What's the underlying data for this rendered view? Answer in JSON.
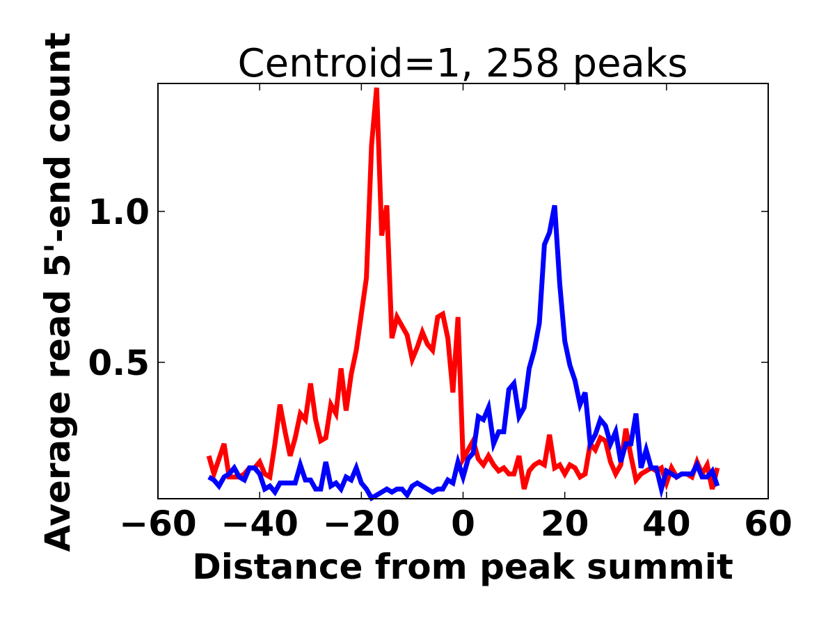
{
  "chart_data": {
    "type": "line",
    "title": "Centroid=1, 258 peaks",
    "xlabel": "Distance from peak summit",
    "ylabel": "Average read 5'-end count",
    "xlim": [
      -60,
      60
    ],
    "ylim": [
      0.048,
      1.424
    ],
    "xticks": [
      -60,
      -40,
      -20,
      0,
      20,
      40,
      60
    ],
    "xtick_labels": [
      "−60",
      "−40",
      "−20",
      "0",
      "20",
      "40",
      "60"
    ],
    "yticks": [
      0.5,
      1.0
    ],
    "ytick_labels": [
      "0.5",
      "1.0"
    ],
    "grid": false,
    "x_start": -50,
    "x_step": 1,
    "series": [
      {
        "name": "red",
        "color": "#ff0000",
        "values": [
          0.19,
          0.13,
          0.18,
          0.23,
          0.12,
          0.12,
          0.12,
          0.13,
          0.15,
          0.15,
          0.17,
          0.13,
          0.12,
          0.23,
          0.36,
          0.27,
          0.19,
          0.25,
          0.33,
          0.31,
          0.43,
          0.31,
          0.24,
          0.25,
          0.36,
          0.33,
          0.48,
          0.34,
          0.46,
          0.54,
          0.66,
          0.78,
          1.22,
          1.41,
          0.92,
          1.02,
          0.58,
          0.65,
          0.62,
          0.59,
          0.51,
          0.55,
          0.6,
          0.56,
          0.54,
          0.65,
          0.66,
          0.58,
          0.4,
          0.65,
          0.18,
          0.21,
          0.24,
          0.18,
          0.16,
          0.19,
          0.16,
          0.14,
          0.15,
          0.13,
          0.13,
          0.19,
          0.08,
          0.14,
          0.16,
          0.17,
          0.16,
          0.26,
          0.15,
          0.16,
          0.13,
          0.16,
          0.15,
          0.12,
          0.13,
          0.23,
          0.21,
          0.25,
          0.24,
          0.17,
          0.13,
          0.16,
          0.28,
          0.19,
          0.11,
          0.13,
          0.14,
          0.15,
          0.14,
          0.15,
          0.1,
          0.15,
          0.12,
          0.13,
          0.13,
          0.12,
          0.17,
          0.13,
          0.16,
          0.08,
          0.15
        ]
      },
      {
        "name": "blue",
        "color": "#0000ff",
        "values": [
          0.12,
          0.11,
          0.09,
          0.12,
          0.13,
          0.15,
          0.12,
          0.11,
          0.15,
          0.15,
          0.13,
          0.08,
          0.09,
          0.07,
          0.1,
          0.1,
          0.1,
          0.1,
          0.16,
          0.11,
          0.11,
          0.08,
          0.08,
          0.17,
          0.09,
          0.1,
          0.08,
          0.12,
          0.11,
          0.15,
          0.1,
          0.08,
          0.05,
          0.06,
          0.07,
          0.08,
          0.07,
          0.08,
          0.08,
          0.06,
          0.09,
          0.1,
          0.09,
          0.08,
          0.07,
          0.08,
          0.08,
          0.11,
          0.1,
          0.17,
          0.12,
          0.18,
          0.2,
          0.32,
          0.31,
          0.35,
          0.23,
          0.27,
          0.27,
          0.41,
          0.43,
          0.32,
          0.35,
          0.48,
          0.54,
          0.63,
          0.89,
          0.93,
          1.02,
          0.76,
          0.57,
          0.49,
          0.44,
          0.36,
          0.4,
          0.23,
          0.26,
          0.31,
          0.29,
          0.23,
          0.27,
          0.17,
          0.23,
          0.23,
          0.33,
          0.15,
          0.21,
          0.15,
          0.15,
          0.08,
          0.14,
          0.13,
          0.12,
          0.13,
          0.13,
          0.13,
          0.16,
          0.12,
          0.12,
          0.14,
          0.09
        ]
      }
    ]
  }
}
